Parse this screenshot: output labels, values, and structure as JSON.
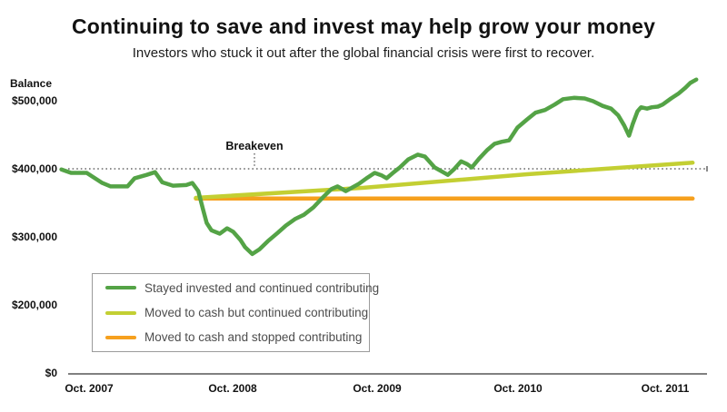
{
  "header": {
    "title": "Continuing to save and invest may help grow your money",
    "subtitle": "Investors who stuck it out after the global financial crisis were first to recover."
  },
  "chart_data": {
    "type": "line",
    "y_axis_title": "Balance",
    "y_tick_labels": [
      "$500,000",
      "$400,000",
      "$300,000",
      "$200,000",
      "$0"
    ],
    "y_tick_values": [
      500000,
      400000,
      300000,
      200000,
      0
    ],
    "x_tick_labels": [
      "Oct. 2007",
      "Oct. 2008",
      "Oct. 2009",
      "Oct. 2010",
      "Oct. 2011"
    ],
    "x_unit": "months since Oct. 2007 (negative = before Oct. 2007)",
    "values_unit": "thousands of dollars",
    "annotation": {
      "label": "Breakeven",
      "value": 400000
    },
    "axis_color": "#808080",
    "breakeven_line_color": "#4a4a4a",
    "legend_position": "lower left, boxed",
    "grid": "off",
    "series": [
      {
        "name": "Stayed invested and continued contributing",
        "color": "#54a346",
        "points": [
          [
            -2.3,
            399
          ],
          [
            -1.5,
            394
          ],
          [
            -0.2,
            394
          ],
          [
            1.1,
            379
          ],
          [
            1.8,
            374
          ],
          [
            3.2,
            374
          ],
          [
            3.8,
            386
          ],
          [
            4.8,
            391
          ],
          [
            5.5,
            395
          ],
          [
            6.1,
            380
          ],
          [
            7.0,
            375
          ],
          [
            8.1,
            376
          ],
          [
            8.6,
            379
          ],
          [
            9.1,
            367
          ],
          [
            9.5,
            340
          ],
          [
            9.8,
            320
          ],
          [
            10.2,
            309
          ],
          [
            10.9,
            304
          ],
          [
            11.5,
            312
          ],
          [
            12.0,
            307
          ],
          [
            12.6,
            295
          ],
          [
            13.0,
            284
          ],
          [
            13.6,
            274
          ],
          [
            14.2,
            281
          ],
          [
            14.9,
            293
          ],
          [
            15.7,
            305
          ],
          [
            16.4,
            316
          ],
          [
            17.2,
            326
          ],
          [
            17.9,
            332
          ],
          [
            18.7,
            343
          ],
          [
            19.5,
            358
          ],
          [
            20.2,
            370
          ],
          [
            20.7,
            374
          ],
          [
            21.4,
            367
          ],
          [
            22.5,
            378
          ],
          [
            23.2,
            387
          ],
          [
            23.8,
            394
          ],
          [
            24.4,
            390
          ],
          [
            24.8,
            386
          ],
          [
            25.4,
            395
          ],
          [
            25.9,
            402
          ],
          [
            26.6,
            414
          ],
          [
            27.4,
            421
          ],
          [
            28.0,
            418
          ],
          [
            28.8,
            402
          ],
          [
            29.5,
            395
          ],
          [
            29.9,
            391
          ],
          [
            30.4,
            399
          ],
          [
            31.0,
            411
          ],
          [
            31.5,
            407
          ],
          [
            31.9,
            402
          ],
          [
            32.5,
            415
          ],
          [
            33.2,
            428
          ],
          [
            33.8,
            437
          ],
          [
            34.4,
            440
          ],
          [
            35.0,
            442
          ],
          [
            35.7,
            461
          ],
          [
            36.5,
            473
          ],
          [
            37.2,
            483
          ],
          [
            38.0,
            487
          ],
          [
            38.8,
            495
          ],
          [
            39.5,
            503
          ],
          [
            40.4,
            505
          ],
          [
            41.3,
            504
          ],
          [
            42.0,
            500
          ],
          [
            42.8,
            493
          ],
          [
            43.5,
            489
          ],
          [
            44.1,
            479
          ],
          [
            44.6,
            464
          ],
          [
            45.0,
            449
          ],
          [
            45.3,
            466
          ],
          [
            45.7,
            485
          ],
          [
            46.0,
            491
          ],
          [
            46.5,
            489
          ],
          [
            46.9,
            491
          ],
          [
            47.4,
            492
          ],
          [
            47.8,
            495
          ],
          [
            48.5,
            504
          ],
          [
            49.1,
            511
          ],
          [
            49.7,
            520
          ],
          [
            50.1,
            527
          ],
          [
            50.6,
            532
          ]
        ]
      },
      {
        "name": "Moved to cash but continued contributing",
        "color": "#c3cf33",
        "points": [
          [
            8.9,
            357
          ],
          [
            22.9,
            372
          ],
          [
            36.5,
            392
          ],
          [
            50.3,
            409
          ]
        ]
      },
      {
        "name": "Moved to cash and stopped contributing",
        "color": "#f6a01e",
        "points": [
          [
            8.9,
            356
          ],
          [
            50.3,
            356
          ]
        ]
      }
    ]
  }
}
